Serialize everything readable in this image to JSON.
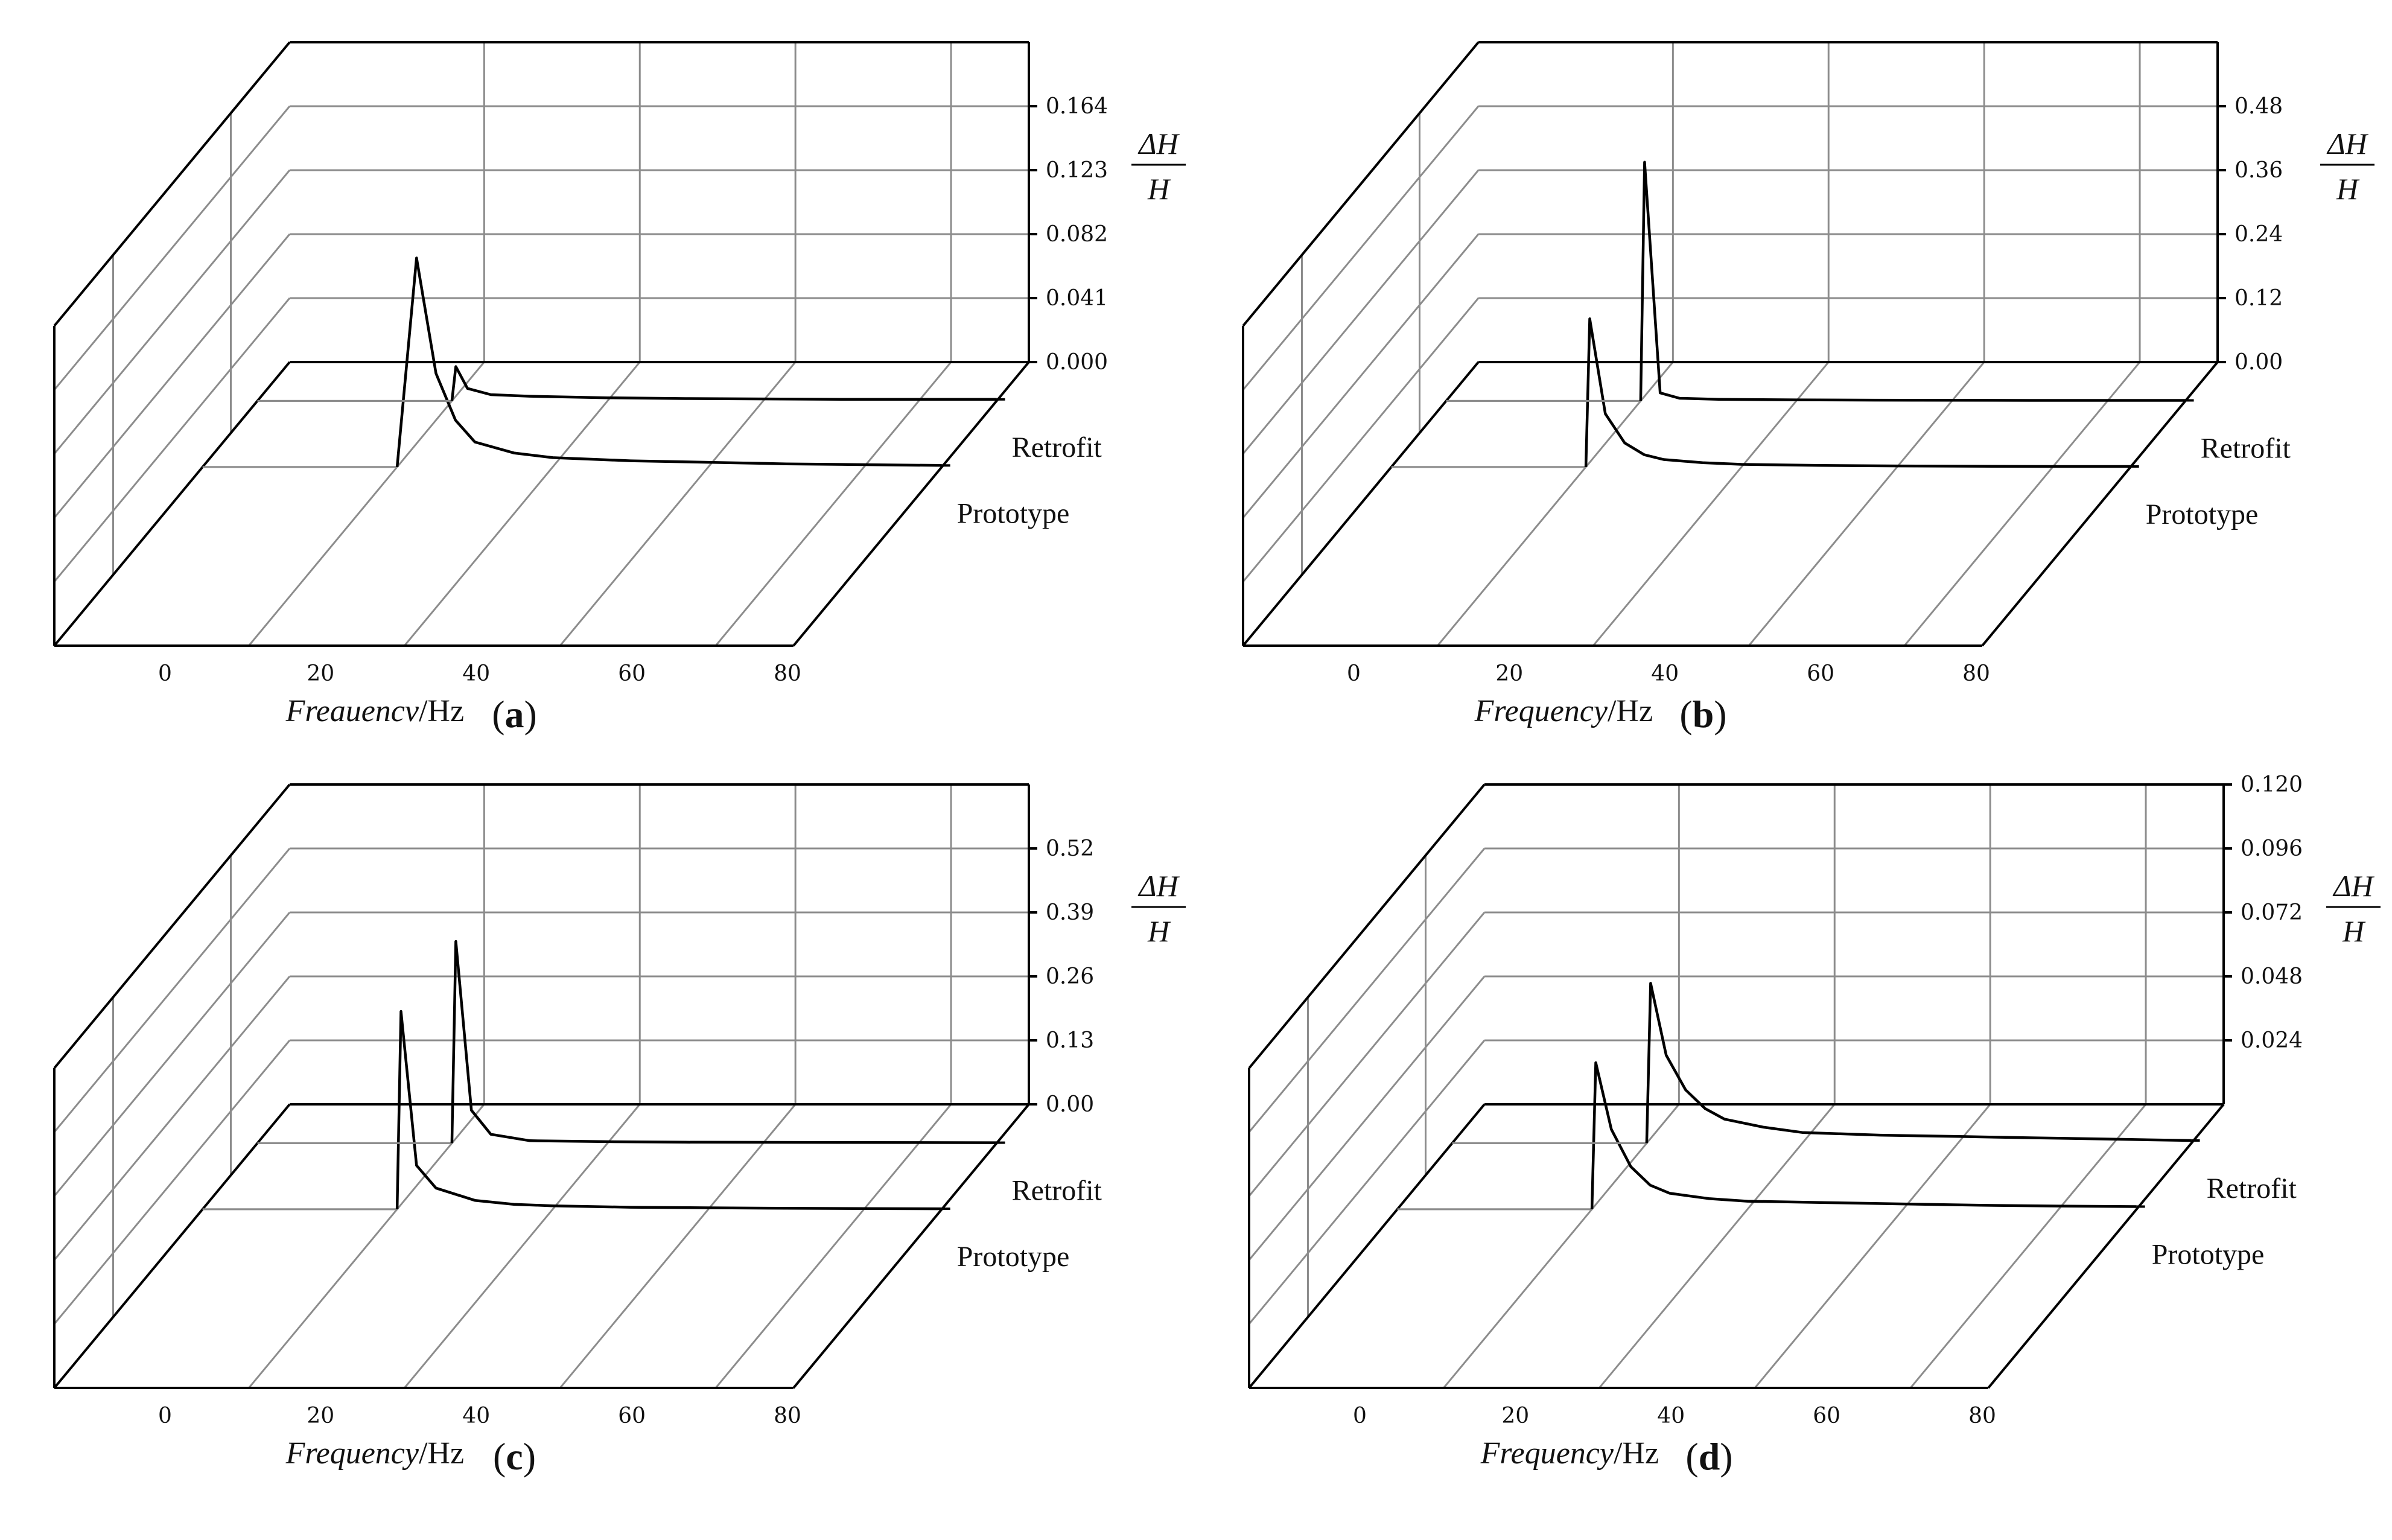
{
  "chart_data": [
    {
      "panel_label": "a",
      "type": "line",
      "view": "3d-waterfall",
      "xlabel_italic": "Freauencv",
      "xlabel_unit": "/Hz",
      "ylabel_num": "ΔH",
      "ylabel_den": "H",
      "x_ticks": [
        "0",
        "20",
        "40",
        "60",
        "80"
      ],
      "xlim": [
        -15,
        80
      ],
      "z_ticks": [
        "0.000",
        "0.041",
        "0.082",
        "0.123",
        "0.164"
      ],
      "zlim": [
        0,
        0.205
      ],
      "series": [
        {
          "name": "Prototype",
          "x": [
            -15,
            10,
            12.5,
            15,
            17.5,
            20,
            25,
            30,
            40,
            50,
            60,
            70,
            80
          ],
          "y": [
            0,
            0,
            0.134,
            0.06,
            0.03,
            0.016,
            0.009,
            0.006,
            0.004,
            0.003,
            0.002,
            0.0015,
            0.001
          ]
        },
        {
          "name": "Retrofit",
          "x": [
            -15,
            10,
            10.5,
            12,
            15,
            20,
            30,
            40,
            60,
            80
          ],
          "y": [
            0,
            0,
            0.022,
            0.008,
            0.004,
            0.003,
            0.002,
            0.0015,
            0.001,
            0.001
          ]
        }
      ]
    },
    {
      "panel_label": "b",
      "type": "line",
      "view": "3d-waterfall",
      "xlabel_italic": "Frequency",
      "xlabel_unit": "/Hz",
      "ylabel_num": "ΔH",
      "ylabel_den": "H",
      "x_ticks": [
        "0",
        "20",
        "40",
        "60",
        "80"
      ],
      "xlim": [
        -15,
        80
      ],
      "z_ticks": [
        "0.00",
        "0.12",
        "0.24",
        "0.36",
        "0.48"
      ],
      "zlim": [
        0,
        0.6
      ],
      "series": [
        {
          "name": "Prototype",
          "x": [
            -15,
            10,
            10.5,
            12.5,
            15,
            17.5,
            20,
            25,
            30,
            40,
            50,
            60,
            70,
            80
          ],
          "y": [
            0,
            0,
            0.278,
            0.1,
            0.045,
            0.023,
            0.014,
            0.008,
            0.005,
            0.003,
            0.002,
            0.0015,
            0.001,
            0.001
          ]
        },
        {
          "name": "Retrofit",
          "x": [
            -15,
            10,
            10.5,
            12.5,
            15,
            20,
            30,
            40,
            60,
            80
          ],
          "y": [
            0,
            0,
            0.448,
            0.015,
            0.005,
            0.003,
            0.002,
            0.0015,
            0.001,
            0.001
          ]
        }
      ]
    },
    {
      "panel_label": "c",
      "type": "line",
      "view": "3d-waterfall",
      "xlabel_italic": "Frequency",
      "xlabel_unit": "/Hz",
      "ylabel_num": "ΔH",
      "ylabel_den": "H",
      "x_ticks": [
        "0",
        "20",
        "40",
        "60",
        "80"
      ],
      "xlim": [
        -15,
        80
      ],
      "z_ticks": [
        "0.00",
        "0.13",
        "0.26",
        "0.39",
        "0.52"
      ],
      "zlim": [
        0,
        0.65
      ],
      "series": [
        {
          "name": "Prototype",
          "x": [
            -15,
            10,
            10.5,
            12.5,
            15,
            20,
            25,
            30,
            40,
            50,
            60,
            70,
            80
          ],
          "y": [
            0,
            0,
            0.402,
            0.089,
            0.043,
            0.018,
            0.01,
            0.007,
            0.004,
            0.003,
            0.002,
            0.0015,
            0.001
          ]
        },
        {
          "name": "Retrofit",
          "x": [
            -15,
            10,
            10.5,
            12.5,
            15,
            20,
            30,
            40,
            60,
            80
          ],
          "y": [
            0,
            0,
            0.41,
            0.067,
            0.018,
            0.005,
            0.003,
            0.002,
            0.0015,
            0.001
          ]
        }
      ]
    },
    {
      "panel_label": "d",
      "type": "line",
      "view": "3d-waterfall",
      "xlabel_italic": "Frequency",
      "xlabel_unit": "/Hz",
      "ylabel_num": "ΔH",
      "ylabel_den": "H",
      "x_ticks": [
        "0",
        "20",
        "40",
        "60",
        "80"
      ],
      "xlim": [
        -15,
        80
      ],
      "z_ticks": [
        "",
        "0.024",
        "0.048",
        "0.072",
        "0.096",
        "0.120"
      ],
      "zlim": [
        0,
        0.12
      ],
      "series": [
        {
          "name": "Prototype",
          "x": [
            -15,
            10,
            10.5,
            12.5,
            15,
            17.5,
            20,
            25,
            30,
            40,
            50,
            60,
            70,
            80
          ],
          "y": [
            0,
            0,
            0.055,
            0.03,
            0.016,
            0.009,
            0.006,
            0.004,
            0.003,
            0.0025,
            0.002,
            0.0015,
            0.0012,
            0.001
          ]
        },
        {
          "name": "Retrofit",
          "x": [
            -15,
            10,
            10.5,
            12.5,
            15,
            17.5,
            20,
            25,
            30,
            40,
            50,
            60,
            70,
            80
          ],
          "y": [
            0,
            0,
            0.06,
            0.033,
            0.02,
            0.013,
            0.009,
            0.006,
            0.004,
            0.003,
            0.0025,
            0.002,
            0.0015,
            0.001
          ]
        }
      ]
    }
  ]
}
